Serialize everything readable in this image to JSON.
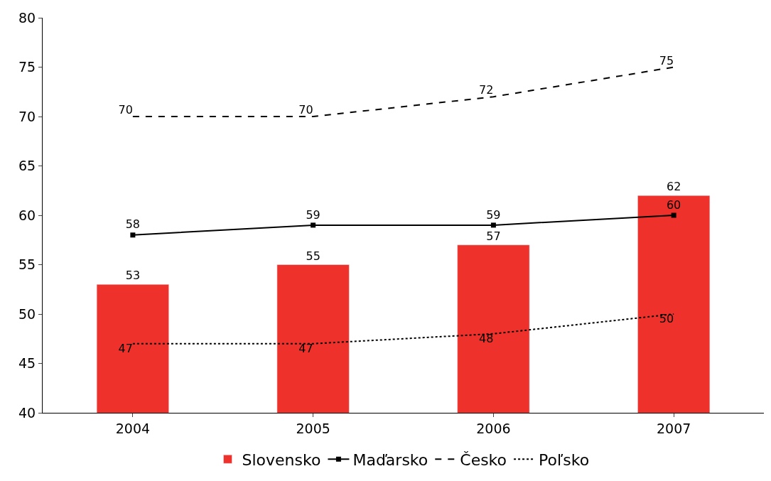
{
  "chart_data": {
    "type": "bar",
    "categories": [
      "2004",
      "2005",
      "2006",
      "2007"
    ],
    "series": [
      {
        "name": "Slovensko",
        "color": "#ee322b",
        "values": [
          53,
          55,
          57,
          62
        ]
      },
      {
        "name": "Maďarsko",
        "type": "line",
        "color": "#000000",
        "marker": "square",
        "line_style": "solid",
        "values": [
          58,
          59,
          59,
          60
        ]
      },
      {
        "name": "Česko",
        "type": "line",
        "color": "#000000",
        "marker": "none",
        "line_style": "dashed",
        "values": [
          70,
          70,
          72,
          75
        ]
      },
      {
        "name": "Poľsko",
        "type": "line",
        "color": "#000000",
        "marker": "none",
        "line_style": "dotted",
        "values": [
          47,
          47,
          48,
          50
        ]
      }
    ],
    "ylim": [
      40,
      80
    ],
    "yticks": [
      40,
      45,
      50,
      55,
      60,
      65,
      70,
      75,
      80
    ],
    "grid": false,
    "legend": "bottom",
    "data_labels": true
  }
}
